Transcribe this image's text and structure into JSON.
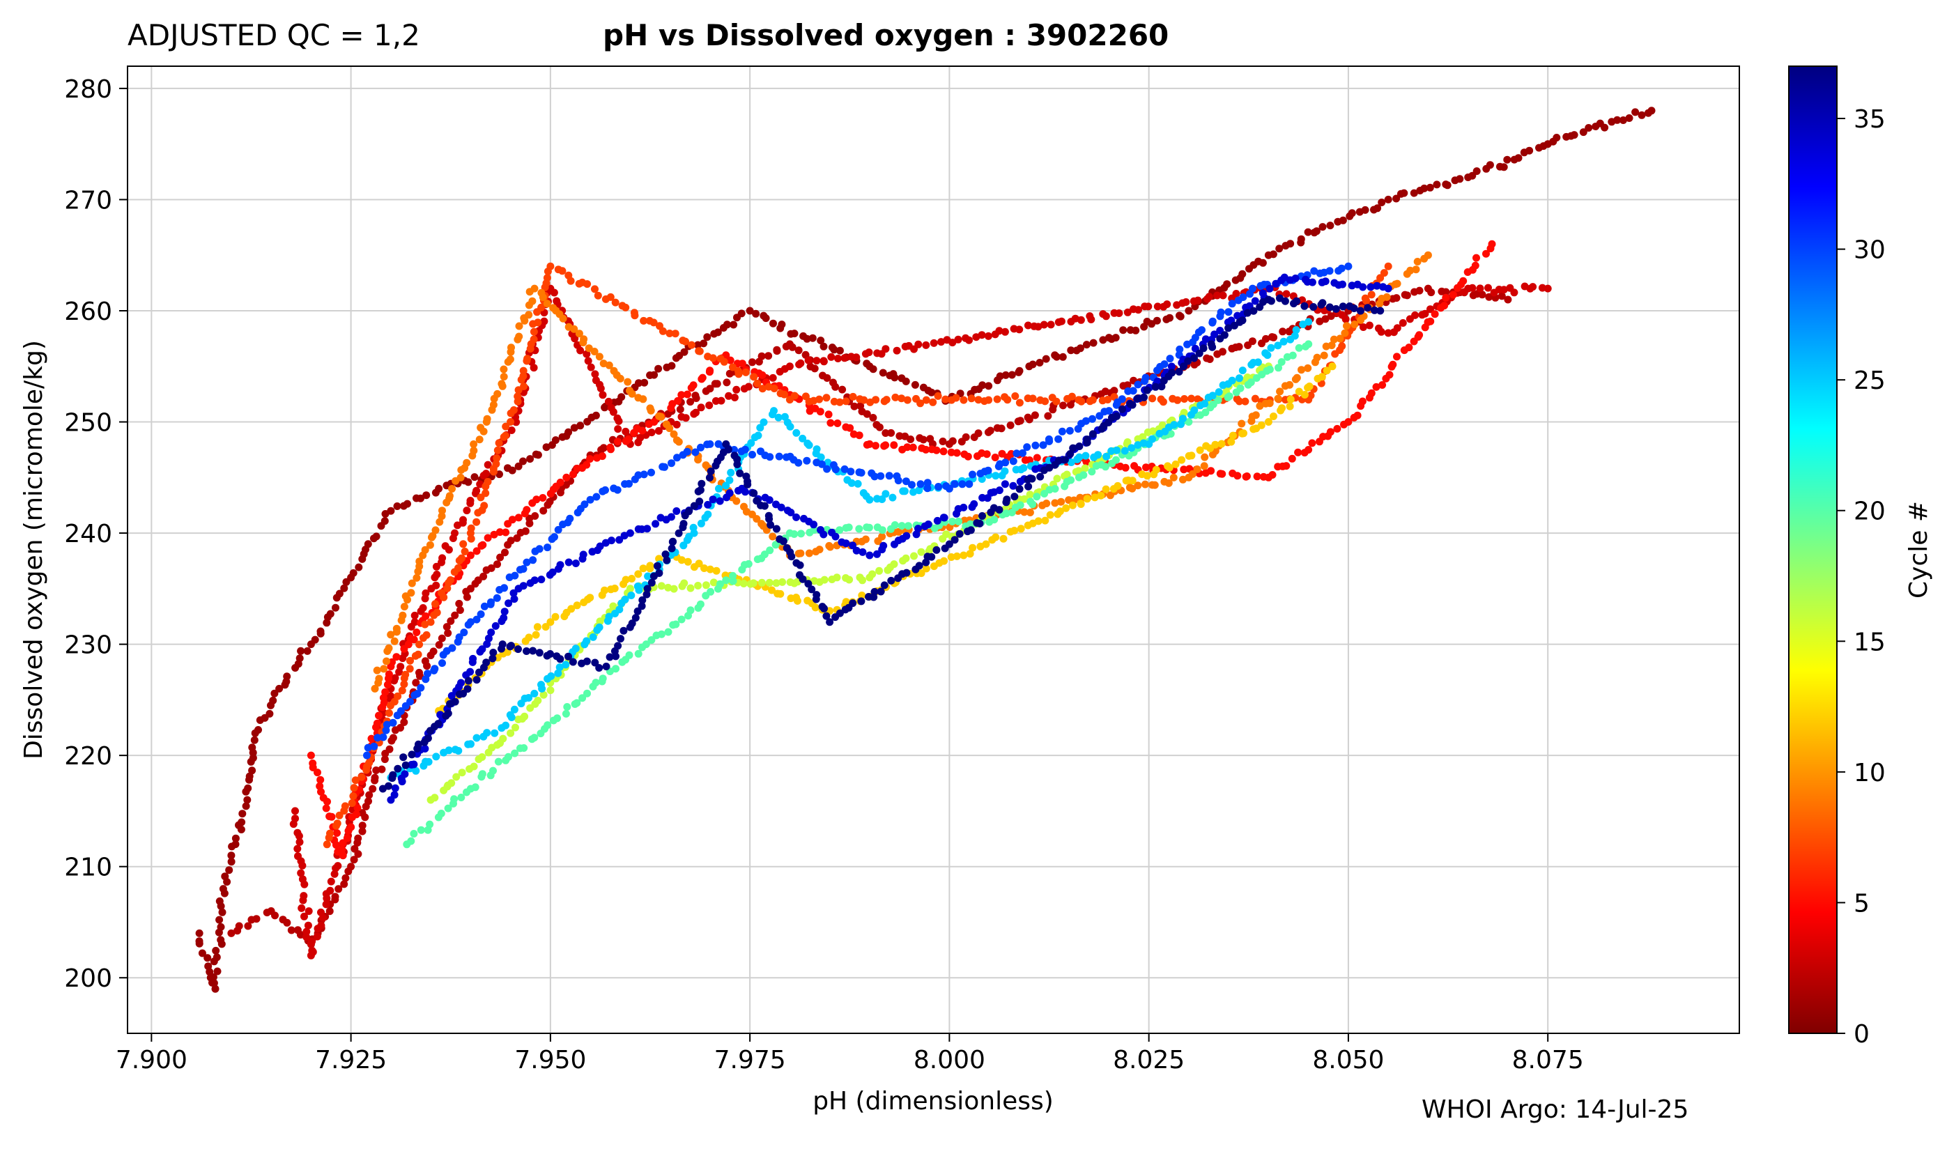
{
  "header": {
    "qc_label": "ADJUSTED QC = 1,2",
    "title": "pH vs Dissolved oxygen : 3902260"
  },
  "footer": {
    "credit": "WHOI Argo: 14-Jul-25"
  },
  "chart_data": {
    "type": "scatter",
    "xlabel": "pH  (dimensionless)",
    "ylabel": "Dissolved oxygen  (micromole/kg)",
    "xlim": [
      7.897,
      8.099
    ],
    "ylim": [
      195,
      282
    ],
    "xticks": [
      7.9,
      7.925,
      7.95,
      7.975,
      8.0,
      8.025,
      8.05,
      8.075
    ],
    "xtick_labels": [
      "7.900",
      "7.925",
      "7.950",
      "7.975",
      "8.000",
      "8.025",
      "8.050",
      "8.075"
    ],
    "yticks": [
      200,
      210,
      220,
      230,
      240,
      250,
      260,
      270,
      280
    ],
    "ytick_labels": [
      "200",
      "210",
      "220",
      "230",
      "240",
      "250",
      "260",
      "270",
      "280"
    ],
    "grid": true,
    "colorbar": {
      "label": "Cycle #",
      "range": [
        0,
        37
      ],
      "ticks": [
        0,
        5,
        10,
        15,
        20,
        25,
        30,
        35
      ],
      "tick_labels": [
        "0",
        "5",
        "10",
        "15",
        "20",
        "25",
        "30",
        "35"
      ],
      "colormap": "jet"
    },
    "series": [
      {
        "name": "cycle 1",
        "cycle": 1,
        "points": [
          [
            7.906,
            204
          ],
          [
            7.908,
            199
          ],
          [
            7.909,
            208
          ],
          [
            7.91,
            211
          ],
          [
            7.912,
            216
          ],
          [
            7.913,
            222
          ],
          [
            7.916,
            226
          ],
          [
            7.92,
            230
          ],
          [
            7.925,
            236
          ],
          [
            7.93,
            242
          ],
          [
            7.936,
            244
          ],
          [
            7.946,
            246
          ],
          [
            7.975,
            260
          ],
          [
            7.99,
            255
          ],
          [
            8.0,
            252
          ],
          [
            8.01,
            255
          ],
          [
            8.03,
            260
          ],
          [
            8.04,
            265
          ],
          [
            8.055,
            270
          ],
          [
            8.065,
            272
          ],
          [
            8.075,
            275
          ],
          [
            8.083,
            277
          ],
          [
            8.088,
            278
          ]
        ]
      },
      {
        "name": "cycle 2",
        "cycle": 2,
        "points": [
          [
            7.91,
            204
          ],
          [
            7.915,
            206
          ],
          [
            7.92,
            203
          ],
          [
            7.925,
            210
          ],
          [
            7.928,
            218
          ],
          [
            7.935,
            229
          ],
          [
            7.94,
            235
          ],
          [
            7.955,
            247
          ],
          [
            7.97,
            253
          ],
          [
            7.98,
            257
          ],
          [
            7.992,
            249
          ],
          [
            8.0,
            248
          ],
          [
            8.05,
            260
          ],
          [
            8.06,
            262
          ],
          [
            8.07,
            261
          ]
        ]
      },
      {
        "name": "cycle 3",
        "cycle": 3,
        "points": [
          [
            7.918,
            215
          ],
          [
            7.92,
            202
          ],
          [
            7.924,
            212
          ],
          [
            7.93,
            226
          ],
          [
            7.933,
            232
          ],
          [
            7.938,
            240
          ],
          [
            7.946,
            251
          ],
          [
            7.95,
            262
          ],
          [
            7.96,
            248
          ],
          [
            7.98,
            255
          ],
          [
            8.04,
            262
          ],
          [
            8.055,
            258
          ],
          [
            8.065,
            262
          ],
          [
            8.075,
            262
          ]
        ]
      },
      {
        "name": "cycle 5",
        "cycle": 5,
        "points": [
          [
            7.92,
            220
          ],
          [
            7.924,
            211
          ],
          [
            7.93,
            228
          ],
          [
            7.94,
            238
          ],
          [
            7.952,
            245
          ],
          [
            7.963,
            250
          ],
          [
            7.972,
            256
          ],
          [
            7.99,
            248
          ],
          [
            8.04,
            245
          ],
          [
            8.05,
            250
          ],
          [
            8.068,
            266
          ]
        ]
      },
      {
        "name": "cycle 7",
        "cycle": 7,
        "points": [
          [
            7.922,
            212
          ],
          [
            7.927,
            219
          ],
          [
            7.935,
            232
          ],
          [
            7.94,
            240
          ],
          [
            7.945,
            250
          ],
          [
            7.95,
            264
          ],
          [
            7.98,
            252
          ],
          [
            8.045,
            252
          ],
          [
            8.055,
            264
          ]
        ]
      },
      {
        "name": "cycle 9",
        "cycle": 9,
        "points": [
          [
            7.928,
            226
          ],
          [
            7.934,
            238
          ],
          [
            7.942,
            250
          ],
          [
            7.948,
            262
          ],
          [
            7.98,
            238
          ],
          [
            8.03,
            245
          ],
          [
            8.06,
            265
          ]
        ]
      },
      {
        "name": "cycle 12",
        "cycle": 12,
        "points": [
          [
            7.936,
            224
          ],
          [
            7.942,
            228
          ],
          [
            7.95,
            232
          ],
          [
            7.965,
            238
          ],
          [
            7.985,
            233
          ],
          [
            8.04,
            250
          ],
          [
            8.048,
            255
          ]
        ]
      },
      {
        "name": "cycle 16",
        "cycle": 16,
        "points": [
          [
            7.935,
            216
          ],
          [
            7.945,
            222
          ],
          [
            7.96,
            235
          ],
          [
            7.99,
            236
          ],
          [
            8.02,
            247
          ],
          [
            8.04,
            255
          ]
        ]
      },
      {
        "name": "cycle 20",
        "cycle": 20,
        "points": [
          [
            7.932,
            212
          ],
          [
            7.94,
            217
          ],
          [
            7.962,
            230
          ],
          [
            7.98,
            240
          ],
          [
            8.005,
            241
          ],
          [
            8.03,
            250
          ],
          [
            8.045,
            257
          ]
        ]
      },
      {
        "name": "cycle 25",
        "cycle": 25,
        "points": [
          [
            7.93,
            218
          ],
          [
            7.943,
            222
          ],
          [
            7.968,
            240
          ],
          [
            7.978,
            251
          ],
          [
            7.99,
            243
          ],
          [
            8.025,
            248
          ],
          [
            8.045,
            259
          ]
        ]
      },
      {
        "name": "cycle 30",
        "cycle": 30,
        "points": [
          [
            7.927,
            220
          ],
          [
            7.94,
            232
          ],
          [
            7.955,
            243
          ],
          [
            7.97,
            248
          ],
          [
            8.0,
            244
          ],
          [
            8.02,
            251
          ],
          [
            8.038,
            262
          ],
          [
            8.05,
            264
          ]
        ]
      },
      {
        "name": "cycle 34",
        "cycle": 34,
        "points": [
          [
            7.93,
            216
          ],
          [
            7.946,
            235
          ],
          [
            7.96,
            240
          ],
          [
            7.974,
            244
          ],
          [
            7.99,
            238
          ],
          [
            8.015,
            247
          ],
          [
            8.042,
            263
          ],
          [
            8.055,
            262
          ]
        ]
      },
      {
        "name": "cycle 37",
        "cycle": 37,
        "points": [
          [
            7.929,
            217
          ],
          [
            7.944,
            230
          ],
          [
            7.957,
            228
          ],
          [
            7.972,
            248
          ],
          [
            7.985,
            232
          ],
          [
            8.0,
            239
          ],
          [
            8.04,
            261
          ],
          [
            8.054,
            260
          ]
        ]
      }
    ]
  }
}
